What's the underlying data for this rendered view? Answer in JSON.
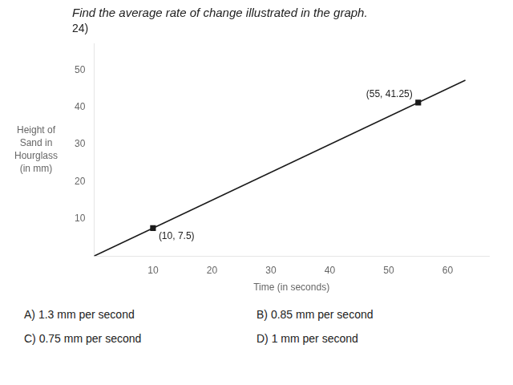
{
  "chart_data": {
    "type": "line",
    "title": "Find the average rate of change illustrated in the graph.",
    "subtitle": "24)",
    "x_label": "Time (in seconds)",
    "y_label": [
      "Height of",
      "Sand in",
      "Hourglass",
      "(in mm)"
    ],
    "series": [
      {
        "type": "line",
        "x": [
          0,
          63
        ],
        "values": [
          0,
          47.25
        ],
        "color": "#1a1a1a",
        "line_style": "solid"
      },
      {
        "type": "scatter",
        "x": [
          10,
          55
        ],
        "values": [
          7.5,
          41.25
        ],
        "color": "#1a1a1a",
        "marker": "square"
      }
    ],
    "annotations": [
      {
        "text": "(10, 7.5)",
        "x": 10,
        "y": 7.5
      },
      {
        "text": "(55, 41.25)",
        "x": 55,
        "y": 41.25
      }
    ],
    "choices": [
      "A) 1.3 mm per second",
      "B) 0.85 mm per second",
      "C) 0.75 mm per second",
      "D) 1 mm per second"
    ],
    "xlim": [
      0,
      67
    ],
    "ylim": [
      0,
      57
    ],
    "xticks": [
      10,
      20,
      30,
      40,
      50,
      60
    ],
    "yticks": [
      10,
      20,
      30,
      40,
      50
    ],
    "grid": false,
    "legend": "none"
  }
}
